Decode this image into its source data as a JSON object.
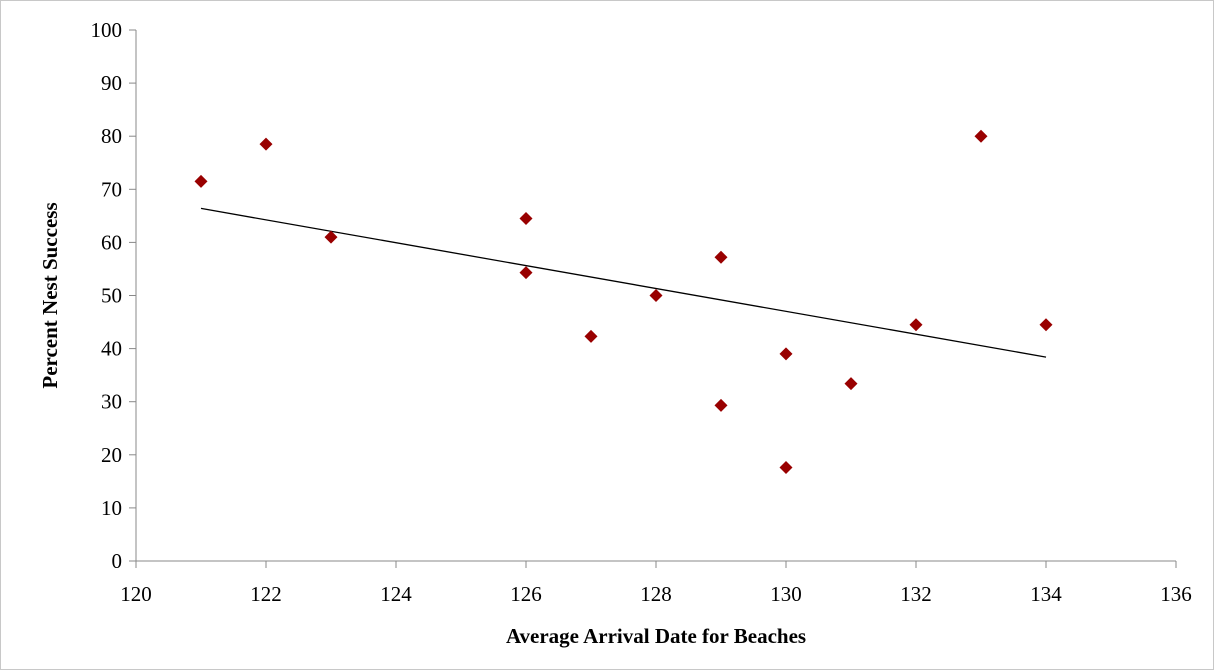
{
  "chart_data": {
    "type": "scatter",
    "title": "",
    "xlabel": "Average Arrival Date for Beaches",
    "ylabel": "Percent Nest Success",
    "xlim": [
      120,
      136
    ],
    "ylim": [
      0,
      100
    ],
    "x_ticks": [
      120,
      122,
      124,
      126,
      128,
      130,
      132,
      134,
      136
    ],
    "y_ticks": [
      0,
      10,
      20,
      30,
      40,
      50,
      60,
      70,
      80,
      90,
      100
    ],
    "grid": false,
    "legend": "none",
    "marker": "diamond",
    "marker_color": "#990000",
    "series": [
      {
        "x": [
          121,
          122,
          123,
          126,
          126,
          127,
          128,
          129,
          129,
          130,
          130,
          131,
          132,
          133,
          134
        ],
        "y": [
          71.5,
          78.5,
          61,
          64.5,
          54.3,
          42.3,
          50,
          57.2,
          29.3,
          39,
          17.6,
          33.4,
          44.5,
          80,
          44.5
        ]
      }
    ],
    "trendline": {
      "type": "linear",
      "color": "#000000",
      "x": [
        121,
        134
      ],
      "y": [
        66.4,
        38.4
      ]
    }
  }
}
